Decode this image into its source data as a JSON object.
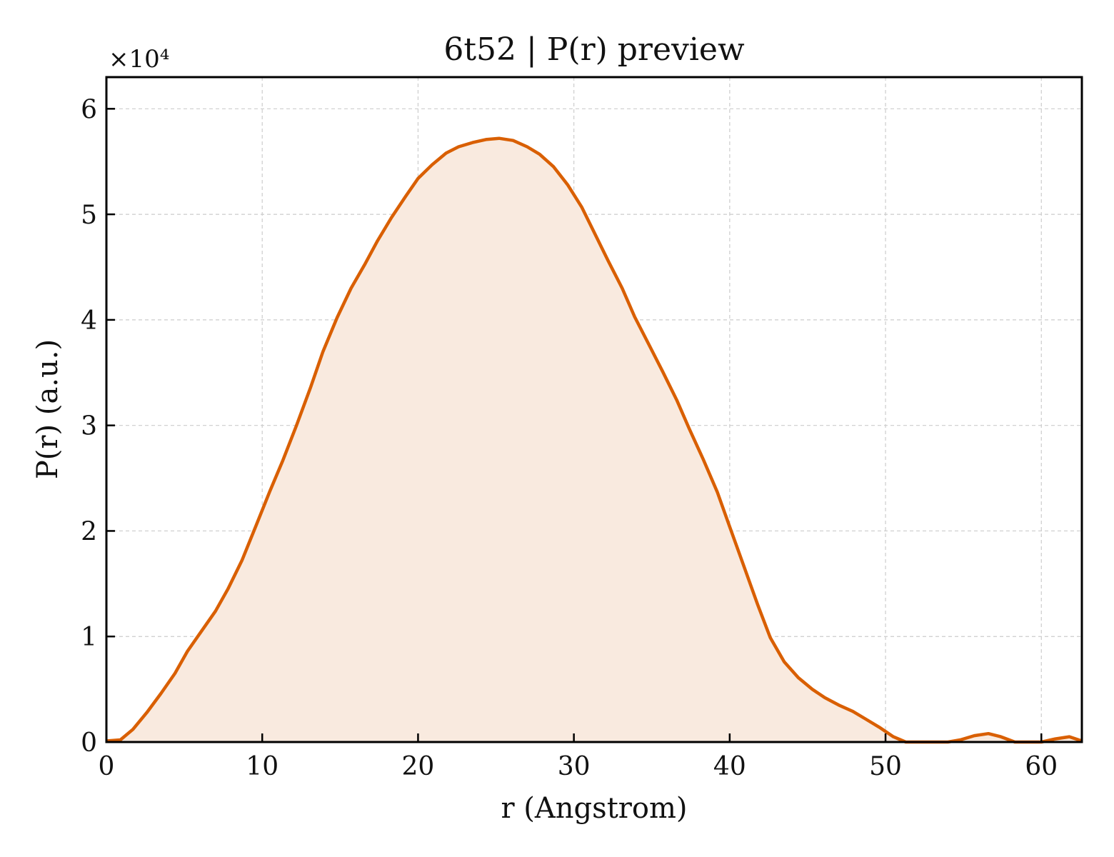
{
  "chart_data": {
    "type": "area",
    "title": "6t52 | P(r) preview",
    "xlabel": "r (Angstrom)",
    "ylabel": "P(r) (a.u.)",
    "y_multiplier_label": "×10⁴",
    "xlim": [
      0,
      62.6
    ],
    "ylim": [
      0,
      6.3
    ],
    "x_ticks": [
      0,
      10,
      20,
      30,
      40,
      50,
      60
    ],
    "y_ticks": [
      0,
      1,
      2,
      3,
      4,
      5,
      6
    ],
    "grid": true,
    "legend": "none",
    "colors": {
      "line": "#d95f02",
      "fill": "#f9eadf"
    },
    "series": [
      {
        "x": [
          0,
          0.9,
          1.7,
          2.6,
          3.5,
          4.4,
          5.2,
          6.1,
          7.0,
          7.8,
          8.7,
          9.6,
          10.5,
          11.3,
          12.2,
          13.1,
          13.9,
          14.8,
          15.7,
          16.6,
          17.4,
          18.3,
          19.2,
          20.0,
          20.9,
          21.8,
          22.6,
          23.5,
          24.4,
          25.2,
          26.1,
          27.0,
          27.8,
          28.7,
          29.6,
          30.5,
          31.3,
          32.2,
          33.1,
          33.9,
          34.8,
          35.7,
          36.6,
          37.4,
          38.3,
          39.2,
          40.0,
          40.9,
          41.8,
          42.6,
          43.5,
          44.4,
          45.3,
          46.1,
          47.0,
          47.9,
          48.7,
          49.6,
          50.5,
          51.3,
          52.2,
          53.1,
          54.0,
          54.8,
          55.7,
          56.6,
          57.4,
          58.3,
          59.2,
          60.0,
          60.9,
          61.8,
          62.6
        ],
        "y": [
          0.01,
          0.02,
          0.12,
          0.28,
          0.46,
          0.65,
          0.86,
          1.05,
          1.24,
          1.45,
          1.72,
          2.05,
          2.38,
          2.66,
          3.0,
          3.36,
          3.7,
          4.02,
          4.3,
          4.53,
          4.75,
          4.97,
          5.17,
          5.34,
          5.47,
          5.58,
          5.64,
          5.68,
          5.71,
          5.72,
          5.7,
          5.64,
          5.57,
          5.45,
          5.28,
          5.07,
          4.83,
          4.56,
          4.3,
          4.03,
          3.77,
          3.51,
          3.24,
          2.97,
          2.68,
          2.37,
          2.04,
          1.67,
          1.3,
          0.99,
          0.76,
          0.61,
          0.5,
          0.42,
          0.35,
          0.29,
          0.22,
          0.14,
          0.05,
          0.0,
          0.0,
          0.0,
          0.0,
          0.02,
          0.06,
          0.08,
          0.05,
          0.0,
          0.0,
          0.0,
          0.03,
          0.05,
          0.01
        ]
      }
    ]
  }
}
